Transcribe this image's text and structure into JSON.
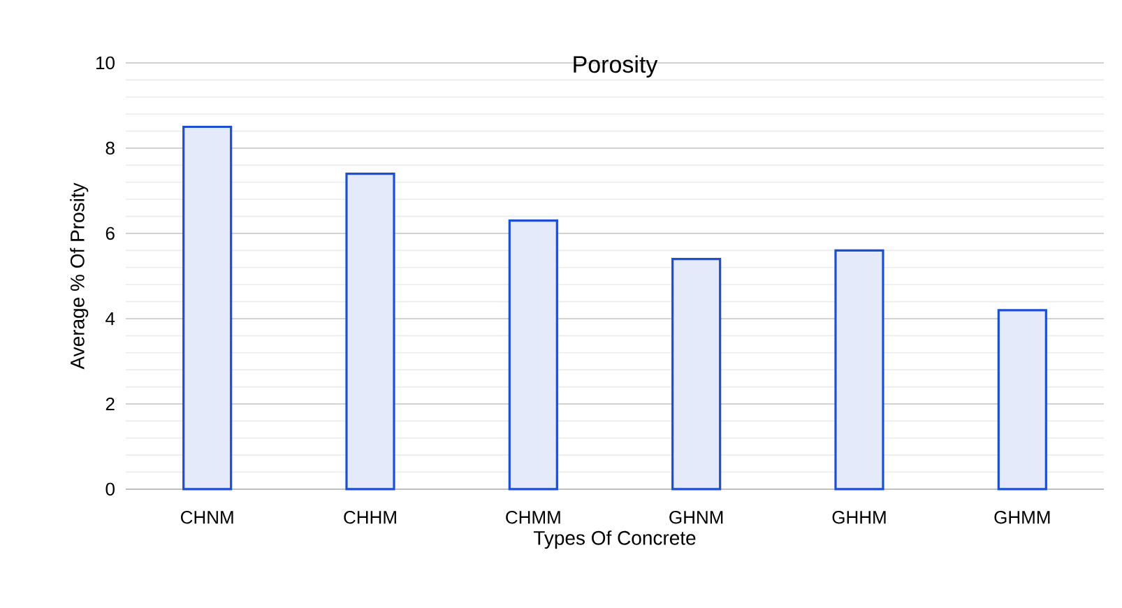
{
  "chart_data": {
    "type": "bar",
    "title": "Porosity",
    "xlabel": "Types Of Concrete",
    "ylabel": "Average  %  Of Prosity",
    "categories": [
      "CHNM",
      "CHHM",
      "CHMM",
      "GHNM",
      "GHHM",
      "GHMM"
    ],
    "values": [
      8.5,
      7.4,
      6.3,
      5.4,
      5.6,
      4.2
    ],
    "color": "#1f4fd1",
    "ylim": [
      0,
      10
    ],
    "yticks": [
      0,
      2,
      4,
      6,
      8,
      10
    ],
    "grid": "y"
  }
}
